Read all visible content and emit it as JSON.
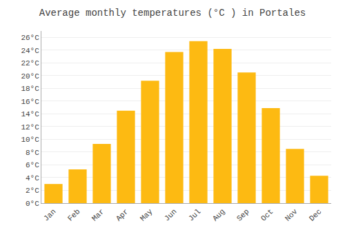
{
  "chart_data": {
    "type": "bar",
    "title": "Average monthly temperatures (°C ) in Portales",
    "categories": [
      "Jan",
      "Feb",
      "Mar",
      "Apr",
      "May",
      "Jun",
      "Jul",
      "Aug",
      "Sep",
      "Oct",
      "Nov",
      "Dec"
    ],
    "values": [
      3.0,
      5.3,
      9.3,
      14.5,
      19.2,
      23.7,
      25.4,
      24.2,
      20.5,
      14.9,
      8.5,
      4.3
    ],
    "color": "#FDBA12",
    "ylim": [
      0,
      27
    ],
    "yticks": [
      {
        "value": 0,
        "label": "0°C"
      },
      {
        "value": 2,
        "label": "2°C"
      },
      {
        "value": 4,
        "label": "4°C"
      },
      {
        "value": 6,
        "label": "6°C"
      },
      {
        "value": 8,
        "label": "8°C"
      },
      {
        "value": 10,
        "label": "10°C"
      },
      {
        "value": 12,
        "label": "12°C"
      },
      {
        "value": 14,
        "label": "14°C"
      },
      {
        "value": 16,
        "label": "16°C"
      },
      {
        "value": 18,
        "label": "18°C"
      },
      {
        "value": 20,
        "label": "20°C"
      },
      {
        "value": 22,
        "label": "22°C"
      },
      {
        "value": 24,
        "label": "24°C"
      },
      {
        "value": 26,
        "label": "26°C"
      }
    ],
    "grid": true
  }
}
